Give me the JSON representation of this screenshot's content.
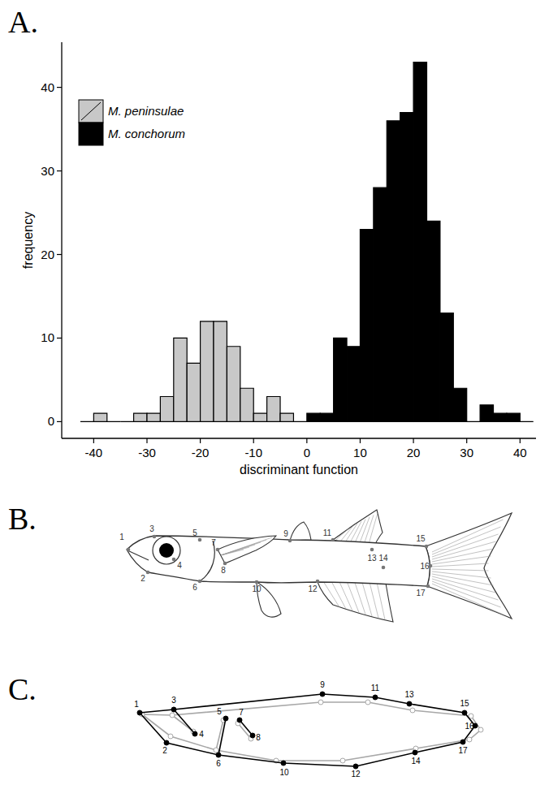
{
  "chart_data": {
    "type": "histogram",
    "x_label": "discriminant function",
    "y_label": "frequency",
    "bins": [
      -42.5,
      -40,
      -37.5,
      -35,
      -32.5,
      -30,
      -27.5,
      -25,
      -22.5,
      -20,
      -17.5,
      -15,
      -12.5,
      -10,
      -7.5,
      -5,
      -2.5,
      0,
      2.5,
      5,
      7.5,
      10,
      12.5,
      15,
      17.5,
      20,
      22.5,
      25,
      27.5,
      30,
      32.5,
      35,
      37.5,
      40,
      42.5
    ],
    "series": [
      {
        "name": "M. peninsulae",
        "color": "#c8c8c8",
        "values": [
          0,
          1,
          0,
          0,
          1,
          1,
          3,
          10,
          7,
          12,
          12,
          9,
          4,
          1,
          3,
          1,
          0,
          null,
          null,
          null,
          null,
          null,
          null,
          null,
          null,
          null,
          null,
          null,
          null,
          null,
          null,
          null,
          null,
          null
        ]
      },
      {
        "name": "M. conchorum",
        "color": "#000000",
        "values": [
          null,
          null,
          null,
          null,
          null,
          null,
          null,
          null,
          null,
          null,
          null,
          null,
          null,
          null,
          null,
          null,
          null,
          1,
          1,
          10,
          9,
          23,
          28,
          36,
          37,
          43,
          24,
          13,
          4,
          0,
          2,
          1,
          1,
          0
        ]
      }
    ],
    "xlim": [
      -46,
      43
    ],
    "xticks": [
      -40,
      -30,
      -20,
      -10,
      0,
      10,
      20,
      30,
      40
    ],
    "ylim": [
      -2,
      45.4
    ],
    "yticks": [
      0,
      10,
      20,
      30,
      40
    ],
    "legend": "top-left"
  },
  "panel_labels": [
    "A.",
    "B.",
    "C."
  ],
  "fish_diagram": {
    "landmarks": [
      1,
      2,
      3,
      4,
      5,
      6,
      7,
      8,
      9,
      10,
      11,
      12,
      13,
      14,
      15,
      16,
      17
    ]
  },
  "landmark_overlay": {
    "landmarks": [
      1,
      2,
      3,
      4,
      5,
      6,
      7,
      8,
      9,
      10,
      11,
      12,
      13,
      14,
      15,
      16,
      17
    ]
  }
}
